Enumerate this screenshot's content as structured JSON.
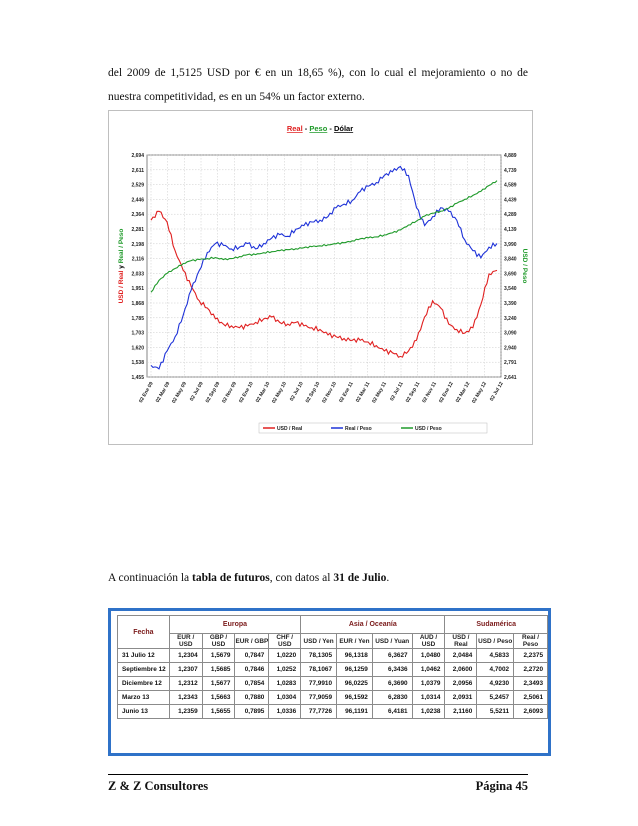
{
  "paragraph1": "del 2009 de 1,5125 USD por € en un 18,65 %), con lo cual el mejoramiento o no de",
  "paragraph2": "nuestra competitividad, es en un 54% un factor externo.",
  "paragraph3": {
    "prefix": "A continuación la ",
    "bold1": "tabla de futuros",
    "middle": ", con datos al ",
    "bold2": "31 de Julio",
    "suffix": "."
  },
  "chart_data": {
    "type": "line",
    "title_parts": [
      {
        "text": "Real",
        "color": "#e02020"
      },
      {
        "text": " - ",
        "color": "#000000"
      },
      {
        "text": "Peso",
        "color": "#1f9a2a"
      },
      {
        "text": " - ",
        "color": "#000000"
      },
      {
        "text": "Dólar",
        "color": "#000000"
      }
    ],
    "ylabel_left_parts": [
      {
        "text": "USD / Real",
        "color": "#e02020"
      },
      {
        "text": "  y  ",
        "color": "#000000"
      },
      {
        "text": "Real / Peso",
        "color": "#1f9a2a"
      }
    ],
    "ylabel_right": "USD / Peso",
    "ylabel_right_color": "#1f9a2a",
    "left_ticks": [
      "2,694",
      "2,611",
      "2,529",
      "2,446",
      "2,364",
      "2,281",
      "2,198",
      "2,116",
      "2,033",
      "1,951",
      "1,868",
      "1,785",
      "1,703",
      "1,620",
      "1,538",
      "1,455"
    ],
    "right_ticks": [
      "4,889",
      "4,739",
      "4,589",
      "4,439",
      "4,289",
      "4,139",
      "3,990",
      "3,840",
      "3,690",
      "3,540",
      "3,390",
      "3,240",
      "3,090",
      "2,940",
      "2,791",
      "2,641"
    ],
    "x_ticks": [
      "02 Ene 09",
      "02 Mar 09",
      "02 May 09",
      "02 Jul 09",
      "02 Sep 09",
      "02 Nov 09",
      "02 Ene 10",
      "02 Mar 10",
      "02 May 10",
      "02 Jul 10",
      "02 Sep 10",
      "02 Nov 10",
      "02 Ene 11",
      "02 Mar 11",
      "02 May 11",
      "02 Jul 11",
      "02 Sep 11",
      "02 Nov 11",
      "02 Ene 12",
      "02 Mar 12",
      "02 May 12",
      "02 Jul 12"
    ],
    "ylim_left": [
      1.455,
      2.694
    ],
    "ylim_right": [
      2.641,
      4.889
    ],
    "grid": true,
    "legend_placement": "bottom",
    "series": [
      {
        "name": "USD / Real",
        "axis": "left",
        "color": "#e02020",
        "x": [
          0,
          1,
          2,
          3,
          4,
          5,
          6,
          7,
          8,
          9,
          10,
          11,
          12,
          13,
          14,
          15,
          16,
          17,
          18,
          19,
          20,
          21,
          22,
          23,
          24,
          25,
          26,
          27,
          28,
          29,
          30,
          31,
          32,
          33,
          34,
          35,
          36,
          37,
          38,
          39,
          40,
          41,
          42,
          43
        ],
        "y": [
          2.33,
          2.38,
          2.32,
          2.16,
          2.05,
          1.96,
          1.88,
          1.84,
          1.78,
          1.75,
          1.74,
          1.73,
          1.74,
          1.76,
          1.78,
          1.79,
          1.76,
          1.75,
          1.76,
          1.74,
          1.73,
          1.72,
          1.69,
          1.68,
          1.67,
          1.66,
          1.66,
          1.65,
          1.63,
          1.6,
          1.59,
          1.57,
          1.6,
          1.66,
          1.79,
          1.88,
          1.84,
          1.75,
          1.72,
          1.7,
          1.73,
          1.86,
          2.03,
          2.05
        ]
      },
      {
        "name": "Real / Peso",
        "axis": "left",
        "color": "#1e32d8",
        "x": [
          0,
          1,
          2,
          3,
          4,
          5,
          6,
          7,
          8,
          9,
          10,
          11,
          12,
          13,
          14,
          15,
          16,
          17,
          18,
          19,
          20,
          21,
          22,
          23,
          24,
          25,
          26,
          27,
          28,
          29,
          30,
          31,
          32,
          33,
          34,
          35,
          36,
          37,
          38,
          39,
          40,
          41,
          42,
          43
        ],
        "y": [
          1.52,
          1.5,
          1.6,
          1.68,
          1.8,
          1.94,
          2.05,
          2.15,
          2.2,
          2.19,
          2.17,
          2.18,
          2.2,
          2.17,
          2.2,
          2.23,
          2.25,
          2.24,
          2.28,
          2.3,
          2.32,
          2.33,
          2.35,
          2.4,
          2.42,
          2.44,
          2.49,
          2.52,
          2.54,
          2.58,
          2.6,
          2.63,
          2.58,
          2.4,
          2.3,
          2.35,
          2.4,
          2.38,
          2.33,
          2.22,
          2.16,
          2.12,
          2.18,
          2.2
        ]
      },
      {
        "name": "USD / Peso",
        "axis": "right",
        "color": "#1f9a2a",
        "x": [
          0,
          1,
          2,
          3,
          4,
          5,
          6,
          7,
          8,
          9,
          10,
          11,
          12,
          13,
          14,
          15,
          16,
          17,
          18,
          19,
          20,
          21,
          22,
          23,
          24,
          25,
          26,
          27,
          28,
          29,
          30,
          31,
          32,
          33,
          34,
          35,
          36,
          37,
          38,
          39,
          40,
          41,
          42,
          43
        ],
        "y": [
          3.5,
          3.62,
          3.69,
          3.74,
          3.79,
          3.82,
          3.83,
          3.84,
          3.85,
          3.83,
          3.84,
          3.86,
          3.88,
          3.88,
          3.9,
          3.91,
          3.92,
          3.93,
          3.94,
          3.95,
          3.96,
          3.97,
          3.98,
          3.99,
          4.0,
          4.02,
          4.04,
          4.05,
          4.06,
          4.08,
          4.1,
          4.13,
          4.18,
          4.22,
          4.27,
          4.3,
          4.32,
          4.35,
          4.4,
          4.44,
          4.48,
          4.52,
          4.58,
          4.63
        ]
      }
    ]
  },
  "table": {
    "groups": {
      "fecha": "Fecha",
      "europa": "Europa",
      "asia": "Asia / Oceanía",
      "sudamerica": "Sudamérica"
    },
    "columns": [
      "EUR / USD",
      "GBP / USD",
      "EUR / GBP",
      "CHF / USD",
      "USD / Yen",
      "EUR / Yen",
      "USD / Yuan",
      "AUD / USD",
      "USD / Real",
      "USD / Peso",
      "Real / Peso"
    ],
    "rows": [
      {
        "fecha": "31 Julio 12",
        "values": [
          "1,2304",
          "1,5679",
          "0,7847",
          "1,0220",
          "78,1305",
          "96,1318",
          "6,3627",
          "1,0480",
          "2,0484",
          "4,5833",
          "2,2375"
        ]
      },
      {
        "fecha": "Septiembre 12",
        "values": [
          "1,2307",
          "1,5685",
          "0,7846",
          "1,0252",
          "78,1067",
          "96,1259",
          "6,3436",
          "1,0462",
          "2,0600",
          "4,7002",
          "2,2720"
        ]
      },
      {
        "fecha": "Diciembre 12",
        "values": [
          "1,2312",
          "1,5677",
          "0,7854",
          "1,0283",
          "77,9910",
          "96,0225",
          "6,3690",
          "1,0379",
          "2,0956",
          "4,9230",
          "2,3493"
        ]
      },
      {
        "fecha": "Marzo 13",
        "values": [
          "1,2343",
          "1,5663",
          "0,7880",
          "1,0304",
          "77,9059",
          "96,1592",
          "6,2830",
          "1,0314",
          "2,0931",
          "5,2457",
          "2,5061"
        ]
      },
      {
        "fecha": "Junio 13",
        "values": [
          "1,2359",
          "1,5655",
          "0,7895",
          "1,0336",
          "77,7726",
          "96,1191",
          "6,4181",
          "1,0238",
          "2,1160",
          "5,5211",
          "2,6093"
        ]
      }
    ]
  },
  "footer": {
    "left": "Z & Z Consultores",
    "right": "Página 45"
  }
}
